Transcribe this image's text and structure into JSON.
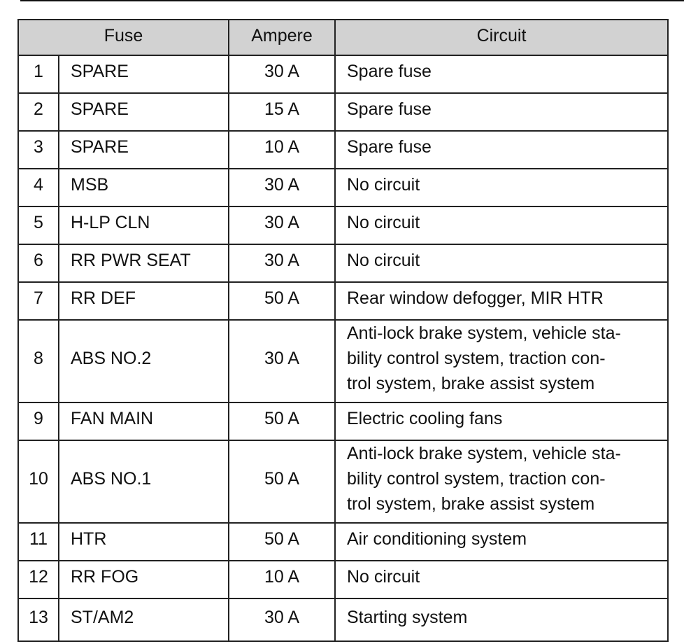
{
  "headers": {
    "fuse": "Fuse",
    "ampere": "Ampere",
    "circuit": "Circuit"
  },
  "rows": [
    {
      "no": "1",
      "name": "SPARE",
      "ampere": "30 A",
      "circuit": "Spare fuse"
    },
    {
      "no": "2",
      "name": "SPARE",
      "ampere": "15 A",
      "circuit": "Spare fuse"
    },
    {
      "no": "3",
      "name": "SPARE",
      "ampere": "10 A",
      "circuit": "Spare fuse"
    },
    {
      "no": "4",
      "name": "MSB",
      "ampere": "30 A",
      "circuit": "No circuit"
    },
    {
      "no": "5",
      "name": "H-LP CLN",
      "ampere": "30 A",
      "circuit": "No circuit"
    },
    {
      "no": "6",
      "name": "RR PWR SEAT",
      "ampere": "30 A",
      "circuit": "No circuit"
    },
    {
      "no": "7",
      "name": "RR DEF",
      "ampere": "50 A",
      "circuit": "Rear window defogger, MIR HTR"
    },
    {
      "no": "8",
      "name": "ABS NO.2",
      "ampere": "30 A",
      "circuit": "Anti-lock brake system, vehicle sta-bility control system, traction con-trol system, brake assist system"
    },
    {
      "no": "9",
      "name": "FAN MAIN",
      "ampere": "50 A",
      "circuit": "Electric cooling fans"
    },
    {
      "no": "10",
      "name": "ABS NO.1",
      "ampere": "50 A",
      "circuit": "Anti-lock brake system, vehicle sta-bility control system, traction con-trol system, brake assist system"
    },
    {
      "no": "11",
      "name": "HTR",
      "ampere": "50 A",
      "circuit": "Air conditioning system"
    },
    {
      "no": "12",
      "name": "RR FOG",
      "ampere": "10 A",
      "circuit": "No circuit"
    },
    {
      "no": "13",
      "name": "ST/AM2",
      "ampere": "30 A",
      "circuit": "Starting system"
    }
  ]
}
